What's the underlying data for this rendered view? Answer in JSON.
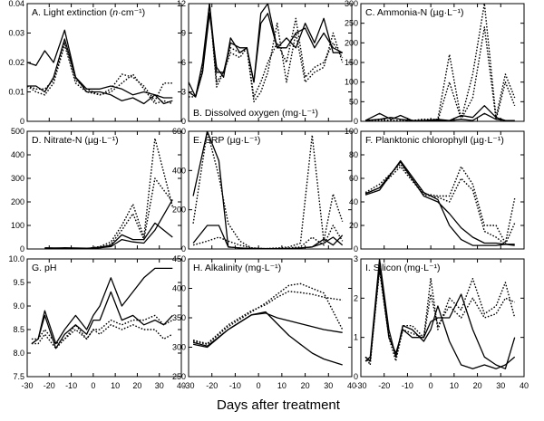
{
  "figure": {
    "xlabel": "Days after treatment",
    "x_ticks": [
      -30,
      -20,
      -10,
      0,
      10,
      20,
      30,
      40
    ]
  },
  "chart_data": [
    {
      "id": "A",
      "type": "line",
      "title": "A. Light extinction (n·cm⁻¹)",
      "title_parts": [
        "A. Light extinction (",
        "n",
        "·cm⁻¹)"
      ],
      "title_position": "top-left",
      "xlim": [
        -30,
        40
      ],
      "ylim": [
        0,
        0.04
      ],
      "y_ticks": [
        "0",
        "0.01",
        "0.02",
        "0.03",
        "0.04"
      ],
      "x": [
        -30,
        -26,
        -22,
        -18,
        -13,
        -8,
        -3,
        3,
        8,
        13,
        18,
        23,
        28,
        32,
        36
      ],
      "series": [
        {
          "style": "solid",
          "values": [
            0.02,
            0.019,
            0.024,
            0.02,
            0.031,
            0.015,
            0.011,
            0.011,
            0.012,
            0.011,
            0.009,
            0.01,
            0.009,
            0.008,
            0.008
          ]
        },
        {
          "style": "solid",
          "values": [
            0.012,
            0.012,
            0.01,
            0.015,
            0.028,
            0.015,
            0.01,
            0.01,
            0.009,
            0.007,
            0.008,
            0.006,
            0.009,
            0.006,
            0.007
          ]
        },
        {
          "style": "dotted",
          "values": [
            0.012,
            0.011,
            0.011,
            0.014,
            0.027,
            0.014,
            0.011,
            0.009,
            0.011,
            0.016,
            0.015,
            0.012,
            0.007,
            0.013,
            0.013
          ]
        },
        {
          "style": "dotted",
          "values": [
            0.012,
            0.01,
            0.009,
            0.013,
            0.026,
            0.013,
            0.01,
            0.009,
            0.01,
            0.013,
            0.016,
            0.011,
            0.006,
            0.007,
            0.006
          ]
        }
      ]
    },
    {
      "id": "D",
      "type": "line",
      "title": "D. Nitrate-N (µg·L⁻¹)",
      "title_position": "top-left",
      "xlim": [
        -30,
        40
      ],
      "ylim": [
        0,
        500
      ],
      "y_ticks": [
        "0",
        "100",
        "200",
        "300",
        "400",
        "500"
      ],
      "x": [
        -22,
        -13,
        -3,
        3,
        8,
        13,
        18,
        23,
        28,
        36
      ],
      "series": [
        {
          "style": "solid",
          "values": [
            5,
            3,
            2,
            8,
            15,
            60,
            40,
            40,
            110,
            50
          ]
        },
        {
          "style": "solid",
          "values": [
            2,
            5,
            3,
            5,
            10,
            40,
            30,
            25,
            80,
            210
          ]
        },
        {
          "style": "dotted",
          "values": [
            2,
            3,
            2,
            10,
            30,
            100,
            190,
            50,
            470,
            180
          ]
        },
        {
          "style": "dotted",
          "values": [
            3,
            2,
            2,
            5,
            20,
            80,
            150,
            40,
            300,
            200
          ]
        }
      ]
    },
    {
      "id": "G",
      "type": "line",
      "title": "G. pH",
      "title_position": "top-left",
      "xlim": [
        -30,
        40
      ],
      "ylim": [
        7.5,
        10.0
      ],
      "y_ticks": [
        "7.5",
        "8.0",
        "8.5",
        "9.0",
        "9.5",
        "10.0"
      ],
      "x": [
        -28,
        -25,
        -22,
        -17,
        -13,
        -8,
        -3,
        0,
        3,
        8,
        13,
        18,
        23,
        28,
        32,
        36
      ],
      "series": [
        {
          "style": "solid",
          "values": [
            8.2,
            8.3,
            8.9,
            8.2,
            8.5,
            8.8,
            8.5,
            8.8,
            9.0,
            9.6,
            9.0,
            9.3,
            9.6,
            9.8,
            9.8,
            9.8
          ]
        },
        {
          "style": "solid",
          "values": [
            8.2,
            8.3,
            8.8,
            8.1,
            8.4,
            8.6,
            8.4,
            8.7,
            8.7,
            9.3,
            8.7,
            8.8,
            8.6,
            8.7,
            8.6,
            8.8
          ]
        },
        {
          "style": "dotted",
          "values": [
            8.3,
            8.3,
            8.5,
            8.2,
            8.3,
            8.6,
            8.3,
            8.5,
            8.5,
            8.7,
            8.6,
            8.7,
            8.7,
            8.8,
            8.6,
            8.7
          ]
        },
        {
          "style": "dotted",
          "values": [
            8.2,
            8.2,
            8.4,
            8.1,
            8.3,
            8.5,
            8.3,
            8.5,
            8.4,
            8.6,
            8.5,
            8.6,
            8.5,
            8.5,
            8.3,
            8.4
          ]
        }
      ]
    },
    {
      "id": "B",
      "type": "line",
      "title": "B. Dissolved oxygen (mg·L⁻¹)",
      "title_position": "bottom-left",
      "xlim": [
        -30,
        40
      ],
      "ylim": [
        0,
        12
      ],
      "y_ticks": [
        "0",
        "3",
        "6",
        "9",
        "12"
      ],
      "x": [
        -30,
        -27,
        -24,
        -21,
        -18,
        -15,
        -12,
        -8,
        -5,
        -2,
        1,
        4,
        8,
        12,
        16,
        20,
        24,
        28,
        32,
        36
      ],
      "series": [
        {
          "style": "solid",
          "values": [
            4,
            2.5,
            6,
            12,
            5,
            5,
            8,
            7.5,
            7.5,
            4,
            11,
            12,
            7.5,
            8.5,
            7.5,
            10,
            8,
            10.5,
            7,
            7
          ]
        },
        {
          "style": "solid",
          "values": [
            3,
            2.5,
            5,
            11,
            5.5,
            4.5,
            8.5,
            7,
            7.5,
            4,
            10,
            11,
            7.5,
            7.5,
            9,
            9.5,
            7.5,
            9,
            7.5,
            7
          ]
        },
        {
          "style": "dotted",
          "values": [
            3,
            2.5,
            5.5,
            12,
            4,
            5,
            7.5,
            7,
            7.5,
            2.5,
            4,
            6,
            8,
            6,
            10.5,
            4.5,
            5.5,
            6,
            8,
            6.5
          ]
        },
        {
          "style": "dotted",
          "values": [
            2.5,
            2.5,
            5,
            12,
            3.5,
            5,
            7,
            6.5,
            7.5,
            2,
            3,
            5,
            10,
            4,
            9,
            4,
            5,
            5.5,
            9,
            6
          ]
        }
      ]
    },
    {
      "id": "E",
      "type": "line",
      "title": "E. SRP (µg·L⁻¹)",
      "title_position": "top-left",
      "xlim": [
        -30,
        40
      ],
      "ylim": [
        0,
        600
      ],
      "y_ticks": [
        "0",
        "200",
        "400",
        "600"
      ],
      "x": [
        -28,
        -22,
        -17,
        -13,
        -8,
        -3,
        3,
        8,
        13,
        18,
        23,
        28,
        32,
        36
      ],
      "series": [
        {
          "style": "solid",
          "values": [
            270,
            600,
            450,
            10,
            5,
            2,
            2,
            2,
            2,
            5,
            10,
            50,
            20,
            70
          ]
        },
        {
          "style": "solid",
          "values": [
            30,
            120,
            120,
            10,
            5,
            2,
            2,
            2,
            2,
            5,
            10,
            30,
            60,
            20
          ]
        },
        {
          "style": "dotted",
          "values": [
            130,
            600,
            370,
            130,
            40,
            5,
            2,
            5,
            10,
            30,
            580,
            40,
            280,
            140
          ]
        },
        {
          "style": "dotted",
          "values": [
            20,
            40,
            60,
            40,
            20,
            5,
            2,
            2,
            5,
            10,
            60,
            20,
            120,
            40
          ]
        }
      ]
    },
    {
      "id": "H",
      "type": "line",
      "title": "H. Alkalinity (mg·L⁻¹)",
      "title_position": "top-left",
      "xlim": [
        -30,
        40
      ],
      "ylim": [
        250,
        450
      ],
      "y_ticks": [
        "250",
        "300",
        "350",
        "400",
        "450"
      ],
      "x": [
        -28,
        -22,
        -13,
        -3,
        3,
        8,
        13,
        18,
        23,
        28,
        36
      ],
      "series": [
        {
          "style": "solid",
          "values": [
            305,
            300,
            330,
            355,
            360,
            340,
            320,
            305,
            290,
            280,
            270
          ]
        },
        {
          "style": "solid",
          "values": [
            308,
            302,
            330,
            355,
            358,
            350,
            345,
            340,
            335,
            330,
            325
          ]
        },
        {
          "style": "dotted",
          "values": [
            310,
            305,
            335,
            360,
            375,
            390,
            405,
            408,
            400,
            392,
            330
          ]
        },
        {
          "style": "dotted",
          "values": [
            312,
            306,
            338,
            362,
            372,
            385,
            395,
            393,
            390,
            385,
            380
          ]
        }
      ]
    },
    {
      "id": "C",
      "type": "line",
      "title": "C. Ammonia-N (µg·L⁻¹)",
      "title_position": "top-left",
      "xlim": [
        -30,
        40
      ],
      "ylim": [
        0,
        300
      ],
      "y_ticks": [
        "0",
        "50",
        "100",
        "150",
        "200",
        "250",
        "300"
      ],
      "x": [
        -28,
        -22,
        -17,
        -13,
        -8,
        -3,
        3,
        8,
        13,
        18,
        23,
        28,
        32,
        36
      ],
      "series": [
        {
          "style": "solid",
          "values": [
            2,
            20,
            5,
            15,
            2,
            2,
            5,
            2,
            15,
            10,
            40,
            10,
            2,
            2
          ]
        },
        {
          "style": "solid",
          "values": [
            2,
            5,
            10,
            5,
            2,
            2,
            2,
            2,
            5,
            2,
            20,
            5,
            2,
            2
          ]
        },
        {
          "style": "dotted",
          "values": [
            2,
            5,
            2,
            2,
            2,
            5,
            5,
            170,
            5,
            120,
            300,
            10,
            120,
            60
          ]
        },
        {
          "style": "dotted",
          "values": [
            2,
            2,
            2,
            2,
            2,
            5,
            2,
            100,
            5,
            60,
            240,
            5,
            100,
            40
          ]
        }
      ]
    },
    {
      "id": "F",
      "type": "line",
      "title": "F. Planktonic chlorophyll (µg·L⁻¹)",
      "title_position": "top-left",
      "xlim": [
        -30,
        40
      ],
      "ylim": [
        0,
        100
      ],
      "y_ticks": [
        "0",
        "20",
        "40",
        "60",
        "80",
        "100"
      ],
      "x": [
        -28,
        -22,
        -13,
        -3,
        3,
        8,
        13,
        18,
        23,
        28,
        32,
        36
      ],
      "series": [
        {
          "style": "solid",
          "values": [
            46,
            50,
            75,
            48,
            42,
            20,
            8,
            3,
            3,
            3,
            4,
            3
          ]
        },
        {
          "style": "solid",
          "values": [
            47,
            52,
            74,
            45,
            40,
            30,
            18,
            10,
            5,
            5,
            4,
            4
          ]
        },
        {
          "style": "dotted",
          "values": [
            48,
            55,
            72,
            47,
            45,
            45,
            70,
            55,
            20,
            20,
            5,
            43
          ]
        },
        {
          "style": "dotted",
          "values": [
            47,
            52,
            70,
            46,
            44,
            40,
            60,
            50,
            15,
            10,
            4,
            22
          ]
        }
      ]
    },
    {
      "id": "I",
      "type": "line",
      "title": "I. Silicon (mg·L⁻¹)",
      "title_position": "top-left",
      "xlim": [
        -30,
        40
      ],
      "ylim": [
        0,
        3
      ],
      "y_ticks": [
        "0",
        "1",
        "2",
        "3"
      ],
      "x": [
        -28,
        -26,
        -22,
        -18,
        -15,
        -12,
        -8,
        -3,
        0,
        3,
        8,
        13,
        18,
        23,
        28,
        32,
        36
      ],
      "series": [
        {
          "style": "solid",
          "values": [
            0.4,
            0.5,
            3.0,
            1.2,
            0.5,
            1.3,
            1.2,
            0.9,
            1.2,
            1.8,
            0.9,
            0.3,
            0.2,
            0.3,
            0.2,
            0.3,
            0.5
          ]
        },
        {
          "style": "solid",
          "values": [
            0.5,
            0.4,
            2.8,
            1.0,
            0.6,
            1.2,
            1.0,
            1.0,
            1.4,
            1.5,
            1.5,
            2.1,
            1.2,
            0.5,
            0.3,
            0.2,
            1.0
          ]
        },
        {
          "style": "dotted",
          "values": [
            0.5,
            0.3,
            2.9,
            1.1,
            0.5,
            1.3,
            1.3,
            1.0,
            2.5,
            1.2,
            2.0,
            1.7,
            2.5,
            1.6,
            1.8,
            2.4,
            1.5
          ]
        },
        {
          "style": "dotted",
          "values": [
            0.4,
            0.4,
            2.7,
            1.0,
            0.4,
            1.2,
            1.1,
            1.0,
            2.1,
            1.3,
            1.8,
            1.5,
            2.0,
            1.5,
            1.6,
            2.0,
            1.9
          ]
        }
      ]
    }
  ]
}
